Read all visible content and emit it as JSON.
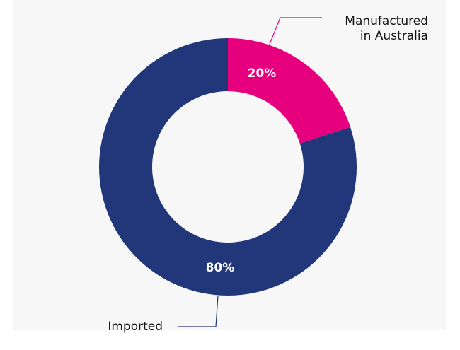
{
  "chart_data": {
    "type": "pie",
    "donut": true,
    "slices": [
      {
        "label": "Manufactured in Australia",
        "label_lines": [
          "Manufactured",
          "in Australia"
        ],
        "value": 20,
        "display": "20%",
        "color": "#e6007e"
      },
      {
        "label": "Imported",
        "label_lines": [
          "Imported"
        ],
        "value": 80,
        "display": "80%",
        "color": "#22377a"
      }
    ],
    "legend": "none",
    "grid": false
  }
}
